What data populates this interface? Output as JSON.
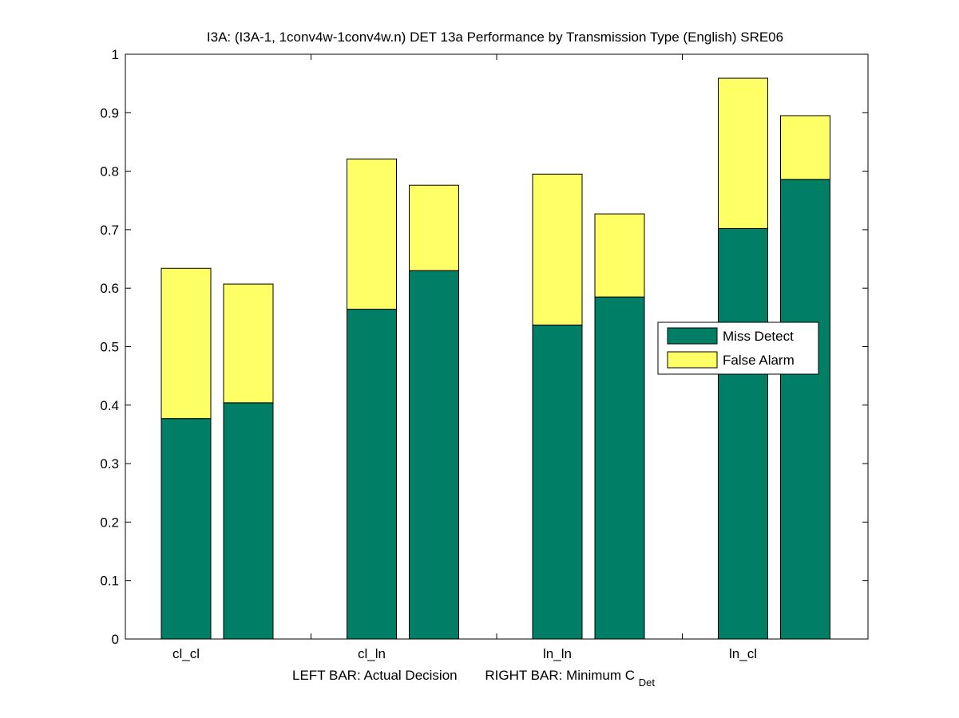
{
  "chart_data": {
    "type": "bar",
    "stacked": true,
    "title": "I3A: (I3A-1, 1conv4w-1conv4w.n) DET 13a Performance by Transmission Type (English) SRE06",
    "xlabel": {
      "left": "LEFT BAR: Actual Decision",
      "right_prefix": "RIGHT BAR: Minimum C",
      "right_subscript": "Det"
    },
    "ylabel": "",
    "ylim": [
      0,
      1
    ],
    "yticks": [
      0,
      0.1,
      0.2,
      0.3,
      0.4,
      0.5,
      0.6,
      0.7,
      0.8,
      0.9,
      1
    ],
    "ytick_labels": [
      "0",
      "0.1",
      "0.2",
      "0.3",
      "0.4",
      "0.5",
      "0.6",
      "0.7",
      "0.8",
      "0.9",
      "1"
    ],
    "categories": [
      "cl_cl",
      "cl_ln",
      "ln_ln",
      "ln_cl"
    ],
    "bar_roles": [
      "Actual Decision",
      "Minimum C_Det"
    ],
    "series": [
      {
        "name": "Miss Detect",
        "color": "#007f66",
        "actual": [
          0.377,
          0.564,
          0.537,
          0.702
        ],
        "minimum": [
          0.404,
          0.63,
          0.585,
          0.786
        ]
      },
      {
        "name": "False Alarm",
        "color": "#ffff66",
        "actual": [
          0.257,
          0.257,
          0.258,
          0.257
        ],
        "minimum": [
          0.203,
          0.146,
          0.142,
          0.109
        ]
      }
    ],
    "legend": [
      "Miss Detect",
      "False Alarm"
    ],
    "legend_position": "right-center",
    "grid": false
  }
}
